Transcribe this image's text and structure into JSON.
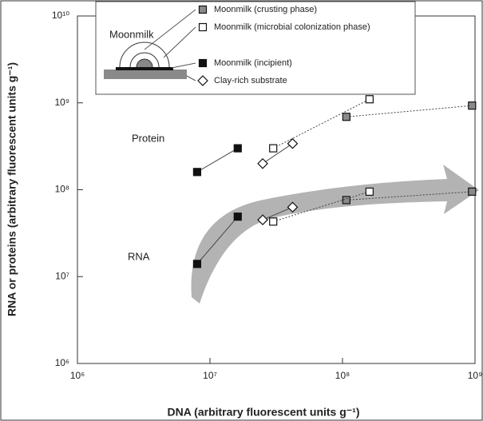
{
  "chart_data": {
    "type": "scatter",
    "x_label": "DNA (arbitrary fluorescent units g⁻¹)",
    "y_label": "RNA or proteins (arbitrary fluorescent units g⁻¹)",
    "xscale": "log",
    "yscale": "log",
    "xlim": [
      1000000,
      1000000000
    ],
    "ylim": [
      1000000,
      10000000000
    ],
    "xticks": [
      {
        "value": 1000000,
        "label": "10⁶"
      },
      {
        "value": 10000000,
        "label": "10⁷"
      },
      {
        "value": 100000000,
        "label": "10⁸"
      },
      {
        "value": 1000000000,
        "label": "10⁹"
      }
    ],
    "yticks": [
      {
        "value": 1000000,
        "label": "10⁶"
      },
      {
        "value": 10000000,
        "label": "10⁷"
      },
      {
        "value": 100000000,
        "label": "10⁸"
      },
      {
        "value": 1000000000,
        "label": "10⁹"
      },
      {
        "value": 10000000000,
        "label": "10¹⁰"
      }
    ],
    "legend_title": "Moonmilk",
    "annotations": [
      "Protein",
      "RNA"
    ],
    "series": [
      {
        "name": "Moonmilk (crusting  phase)",
        "color": "#8a8a8a",
        "marker": "square",
        "line": "dotted",
        "x": [
          107000000,
          950000000
        ],
        "protein": [
          690000000,
          930000000
        ],
        "rna": [
          76000000,
          95000000
        ]
      },
      {
        "name": "Moonmilk (microbial colonization phase)",
        "color": "#ffffff",
        "marker": "square",
        "line": "dotted",
        "x": [
          30000000,
          160000000
        ],
        "protein": [
          300000000,
          1100000000
        ],
        "rna": [
          43000000,
          95000000
        ]
      },
      {
        "name": "Moonmilk (incipient)",
        "color": "#111111",
        "marker": "square",
        "line": "solid",
        "x": [
          8000000,
          16200000
        ],
        "protein": [
          160000000,
          300000000
        ],
        "rna": [
          14000000,
          49000000
        ]
      },
      {
        "name": "Clay-rich substrate",
        "color": "#ffffff",
        "marker": "diamond",
        "line": "solid",
        "x": [
          25000000,
          42000000
        ],
        "protein": [
          200000000,
          340000000
        ],
        "rna": [
          45000000,
          63000000
        ]
      }
    ]
  }
}
